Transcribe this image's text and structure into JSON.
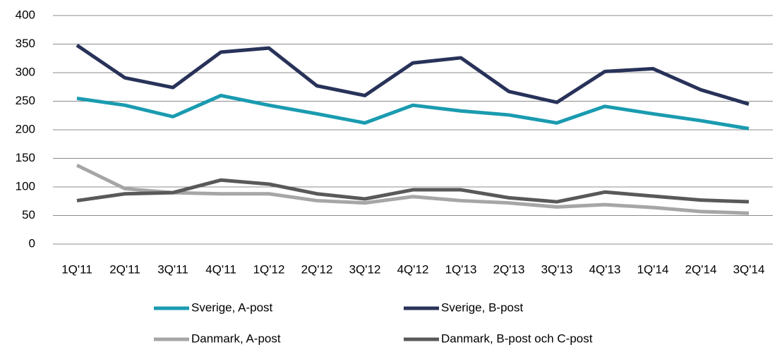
{
  "chart_data": {
    "type": "line",
    "categories": [
      "1Q'11",
      "2Q'11",
      "3Q'11",
      "4Q'11",
      "1Q'12",
      "2Q'12",
      "3Q'12",
      "4Q'12",
      "1Q'13",
      "2Q'13",
      "3Q'13",
      "4Q'13",
      "1Q'14",
      "2Q'14",
      "3Q'14"
    ],
    "series": [
      {
        "name": "Sverige, A-post",
        "color": "#1a9bb0",
        "values": [
          255,
          243,
          223,
          260,
          243,
          228,
          212,
          243,
          233,
          226,
          212,
          241,
          228,
          216,
          202
        ]
      },
      {
        "name": "Sverige, B-post",
        "color": "#283259",
        "values": [
          348,
          291,
          274,
          336,
          343,
          277,
          260,
          317,
          326,
          267,
          248,
          302,
          307,
          270,
          245
        ]
      },
      {
        "name": "Danmark, A-post",
        "color": "#a6a6a6",
        "values": [
          138,
          97,
          90,
          88,
          88,
          76,
          72,
          83,
          76,
          72,
          65,
          69,
          64,
          57,
          54
        ]
      },
      {
        "name": "Danmark, B-post och C-post",
        "color": "#595959",
        "values": [
          76,
          88,
          90,
          112,
          105,
          88,
          79,
          95,
          95,
          81,
          74,
          91,
          84,
          77,
          74
        ]
      }
    ],
    "ylim": [
      0,
      400
    ],
    "yticks": [
      0,
      50,
      100,
      150,
      200,
      250,
      300,
      350,
      400
    ],
    "grid": true,
    "legend": "bottom"
  }
}
